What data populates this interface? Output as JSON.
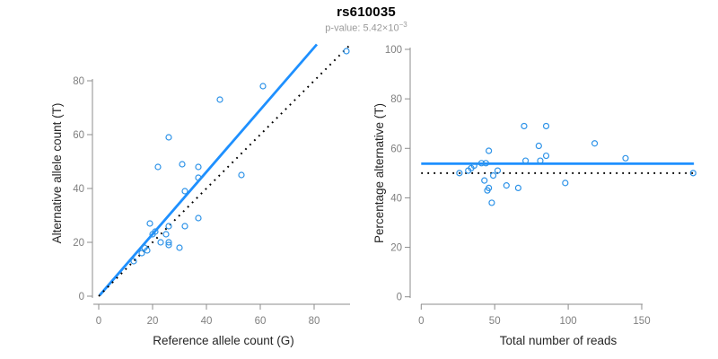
{
  "figure": {
    "title": "rs610035",
    "subtitle_base": "p-value: 5.42×10",
    "subtitle_exponent": "−3"
  },
  "colors": {
    "accent_blue": "#1E90FF",
    "point_blue": "#2E93E8",
    "dotted_black": "#000000",
    "axis_gray": "#8c8c8c",
    "tick_label_gray": "#7f7f7f",
    "axis_title_dark": "#262626"
  },
  "chart_data": [
    {
      "panel": "allele-counts",
      "type": "scatter",
      "point_style": "open-circle",
      "grid": false,
      "legend": false,
      "xlabel": "Reference allele count (G)",
      "ylabel": "Alternative allele count (T)",
      "xlim": [
        0,
        94
      ],
      "ylim": [
        0,
        94
      ],
      "xticks": [
        0,
        20,
        40,
        60,
        80
      ],
      "yticks": [
        0,
        20,
        40,
        60,
        80
      ],
      "points": [
        [
          13,
          13
        ],
        [
          16,
          16
        ],
        [
          17,
          18
        ],
        [
          18,
          17
        ],
        [
          19,
          27
        ],
        [
          20,
          23
        ],
        [
          21,
          24
        ],
        [
          23,
          20
        ],
        [
          25,
          23
        ],
        [
          26,
          26
        ],
        [
          26,
          20
        ],
        [
          26,
          19
        ],
        [
          26,
          59
        ],
        [
          22,
          48
        ],
        [
          30,
          18
        ],
        [
          31,
          49
        ],
        [
          32,
          39
        ],
        [
          32,
          26
        ],
        [
          37,
          48
        ],
        [
          37,
          44
        ],
        [
          37,
          29
        ],
        [
          45,
          73
        ],
        [
          53,
          45
        ],
        [
          61,
          78
        ],
        [
          92,
          91
        ]
      ],
      "lines": [
        {
          "name": "regression-line",
          "style": "solid",
          "color": "#1E90FF",
          "x1": 0.4,
          "y1": 0.4,
          "x2": 81,
          "y2": 93.5
        },
        {
          "name": "identity-line",
          "style": "dotted",
          "color": "#000000",
          "x1": 0,
          "y1": 0,
          "x2": 93,
          "y2": 93
        }
      ]
    },
    {
      "panel": "percentage-vs-reads",
      "type": "scatter",
      "point_style": "open-circle",
      "grid": false,
      "legend": false,
      "xlabel": "Total number of reads",
      "ylabel": "Percentage alternative (T)",
      "xlim": [
        0,
        188
      ],
      "ylim": [
        0,
        100
      ],
      "xticks": [
        0,
        50,
        100,
        150
      ],
      "yticks": [
        0,
        20,
        40,
        60,
        80,
        100
      ],
      "points": [
        [
          26,
          50
        ],
        [
          32,
          51
        ],
        [
          34,
          52
        ],
        [
          36,
          53
        ],
        [
          41,
          54
        ],
        [
          44,
          54
        ],
        [
          43,
          47
        ],
        [
          45,
          43
        ],
        [
          46,
          44
        ],
        [
          46,
          59
        ],
        [
          48,
          38
        ],
        [
          49,
          49
        ],
        [
          52,
          51
        ],
        [
          58,
          45
        ],
        [
          66,
          44
        ],
        [
          70,
          69
        ],
        [
          71,
          55
        ],
        [
          80,
          61
        ],
        [
          81,
          55
        ],
        [
          85,
          57
        ],
        [
          85,
          69
        ],
        [
          98,
          46
        ],
        [
          118,
          62
        ],
        [
          139,
          56
        ],
        [
          185,
          50
        ]
      ],
      "lines": [
        {
          "name": "mean-percentage-line",
          "style": "solid",
          "color": "#1E90FF",
          "x1": 0,
          "y1": 53.8,
          "x2": 185.5,
          "y2": 53.8
        },
        {
          "name": "fifty-percent-line",
          "style": "dotted",
          "color": "#000000",
          "x1": 0,
          "y1": 50,
          "x2": 188,
          "y2": 50
        }
      ]
    }
  ]
}
